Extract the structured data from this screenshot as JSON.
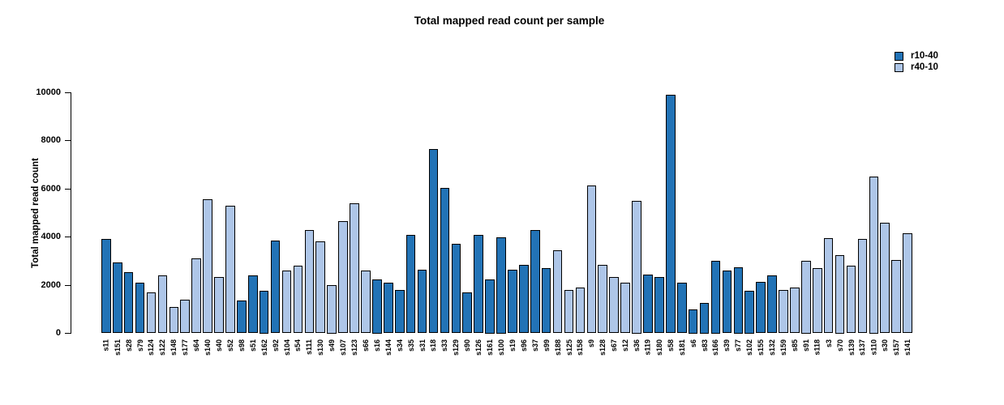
{
  "chart_data": {
    "type": "bar",
    "title": "Total mapped read count per sample",
    "xlabel": "",
    "ylabel": "Total mapped read count",
    "ylim": [
      0,
      10000
    ],
    "yticks": [
      0,
      2000,
      4000,
      6000,
      8000,
      10000
    ],
    "grid": false,
    "legend_position": "top-right",
    "groups": [
      {
        "name": "r10-40",
        "color": "#2273b6"
      },
      {
        "name": "r40-10",
        "color": "#aec6e8"
      }
    ],
    "bars": [
      {
        "sample": "s11",
        "group": "r10-40",
        "value": 3900
      },
      {
        "sample": "s151",
        "group": "r10-40",
        "value": 2950
      },
      {
        "sample": "s28",
        "group": "r10-40",
        "value": 2550
      },
      {
        "sample": "s79",
        "group": "r10-40",
        "value": 2100
      },
      {
        "sample": "s124",
        "group": "r40-10",
        "value": 1700
      },
      {
        "sample": "s122",
        "group": "r40-10",
        "value": 2400
      },
      {
        "sample": "s148",
        "group": "r40-10",
        "value": 1100
      },
      {
        "sample": "s177",
        "group": "r40-10",
        "value": 1400
      },
      {
        "sample": "s64",
        "group": "r40-10",
        "value": 3100
      },
      {
        "sample": "s140",
        "group": "r40-10",
        "value": 5550
      },
      {
        "sample": "s40",
        "group": "r40-10",
        "value": 2350
      },
      {
        "sample": "s52",
        "group": "r40-10",
        "value": 5300
      },
      {
        "sample": "s98",
        "group": "r10-40",
        "value": 1350
      },
      {
        "sample": "s51",
        "group": "r10-40",
        "value": 2400
      },
      {
        "sample": "s162",
        "group": "r10-40",
        "value": 1750
      },
      {
        "sample": "s92",
        "group": "r10-40",
        "value": 3850
      },
      {
        "sample": "s104",
        "group": "r40-10",
        "value": 2600
      },
      {
        "sample": "s54",
        "group": "r40-10",
        "value": 2800
      },
      {
        "sample": "s111",
        "group": "r40-10",
        "value": 4300
      },
      {
        "sample": "s130",
        "group": "r40-10",
        "value": 3800
      },
      {
        "sample": "s49",
        "group": "r40-10",
        "value": 2000
      },
      {
        "sample": "s107",
        "group": "r40-10",
        "value": 4650
      },
      {
        "sample": "s123",
        "group": "r40-10",
        "value": 5400
      },
      {
        "sample": "s66",
        "group": "r40-10",
        "value": 2600
      },
      {
        "sample": "s16",
        "group": "r10-40",
        "value": 2250
      },
      {
        "sample": "s144",
        "group": "r10-40",
        "value": 2100
      },
      {
        "sample": "s34",
        "group": "r10-40",
        "value": 1800
      },
      {
        "sample": "s35",
        "group": "r10-40",
        "value": 4100
      },
      {
        "sample": "s31",
        "group": "r10-40",
        "value": 2650
      },
      {
        "sample": "s18",
        "group": "r10-40",
        "value": 7650
      },
      {
        "sample": "s33",
        "group": "r10-40",
        "value": 6050
      },
      {
        "sample": "s129",
        "group": "r10-40",
        "value": 3700
      },
      {
        "sample": "s90",
        "group": "r10-40",
        "value": 1700
      },
      {
        "sample": "s126",
        "group": "r10-40",
        "value": 4100
      },
      {
        "sample": "s161",
        "group": "r10-40",
        "value": 2250
      },
      {
        "sample": "s100",
        "group": "r10-40",
        "value": 4000
      },
      {
        "sample": "s19",
        "group": "r10-40",
        "value": 2650
      },
      {
        "sample": "s96",
        "group": "r10-40",
        "value": 2850
      },
      {
        "sample": "s37",
        "group": "r10-40",
        "value": 4300
      },
      {
        "sample": "s99",
        "group": "r10-40",
        "value": 2700
      },
      {
        "sample": "s188",
        "group": "r40-10",
        "value": 3450
      },
      {
        "sample": "s125",
        "group": "r40-10",
        "value": 1800
      },
      {
        "sample": "s158",
        "group": "r40-10",
        "value": 1900
      },
      {
        "sample": "s9",
        "group": "r40-10",
        "value": 6150
      },
      {
        "sample": "s128",
        "group": "r40-10",
        "value": 2850
      },
      {
        "sample": "s67",
        "group": "r40-10",
        "value": 2350
      },
      {
        "sample": "s12",
        "group": "r40-10",
        "value": 2100
      },
      {
        "sample": "s36",
        "group": "r40-10",
        "value": 5500
      },
      {
        "sample": "s119",
        "group": "r10-40",
        "value": 2450
      },
      {
        "sample": "s180",
        "group": "r10-40",
        "value": 2350
      },
      {
        "sample": "s58",
        "group": "r10-40",
        "value": 9900
      },
      {
        "sample": "s181",
        "group": "r10-40",
        "value": 2100
      },
      {
        "sample": "s6",
        "group": "r10-40",
        "value": 1000
      },
      {
        "sample": "s83",
        "group": "r10-40",
        "value": 1250
      },
      {
        "sample": "s166",
        "group": "r10-40",
        "value": 3000
      },
      {
        "sample": "s39",
        "group": "r10-40",
        "value": 2600
      },
      {
        "sample": "s77",
        "group": "r10-40",
        "value": 2750
      },
      {
        "sample": "s102",
        "group": "r10-40",
        "value": 1750
      },
      {
        "sample": "s155",
        "group": "r10-40",
        "value": 2150
      },
      {
        "sample": "s132",
        "group": "r10-40",
        "value": 2400
      },
      {
        "sample": "s159",
        "group": "r40-10",
        "value": 1800
      },
      {
        "sample": "s85",
        "group": "r40-10",
        "value": 1900
      },
      {
        "sample": "s91",
        "group": "r40-10",
        "value": 3000
      },
      {
        "sample": "s118",
        "group": "r40-10",
        "value": 2700
      },
      {
        "sample": "s3",
        "group": "r40-10",
        "value": 3950
      },
      {
        "sample": "s70",
        "group": "r40-10",
        "value": 3250
      },
      {
        "sample": "s139",
        "group": "r40-10",
        "value": 2800
      },
      {
        "sample": "s137",
        "group": "r40-10",
        "value": 3900
      },
      {
        "sample": "s110",
        "group": "r40-10",
        "value": 6500
      },
      {
        "sample": "s30",
        "group": "r40-10",
        "value": 4600
      },
      {
        "sample": "s157",
        "group": "r40-10",
        "value": 3050
      },
      {
        "sample": "s141",
        "group": "r40-10",
        "value": 4150
      }
    ]
  }
}
